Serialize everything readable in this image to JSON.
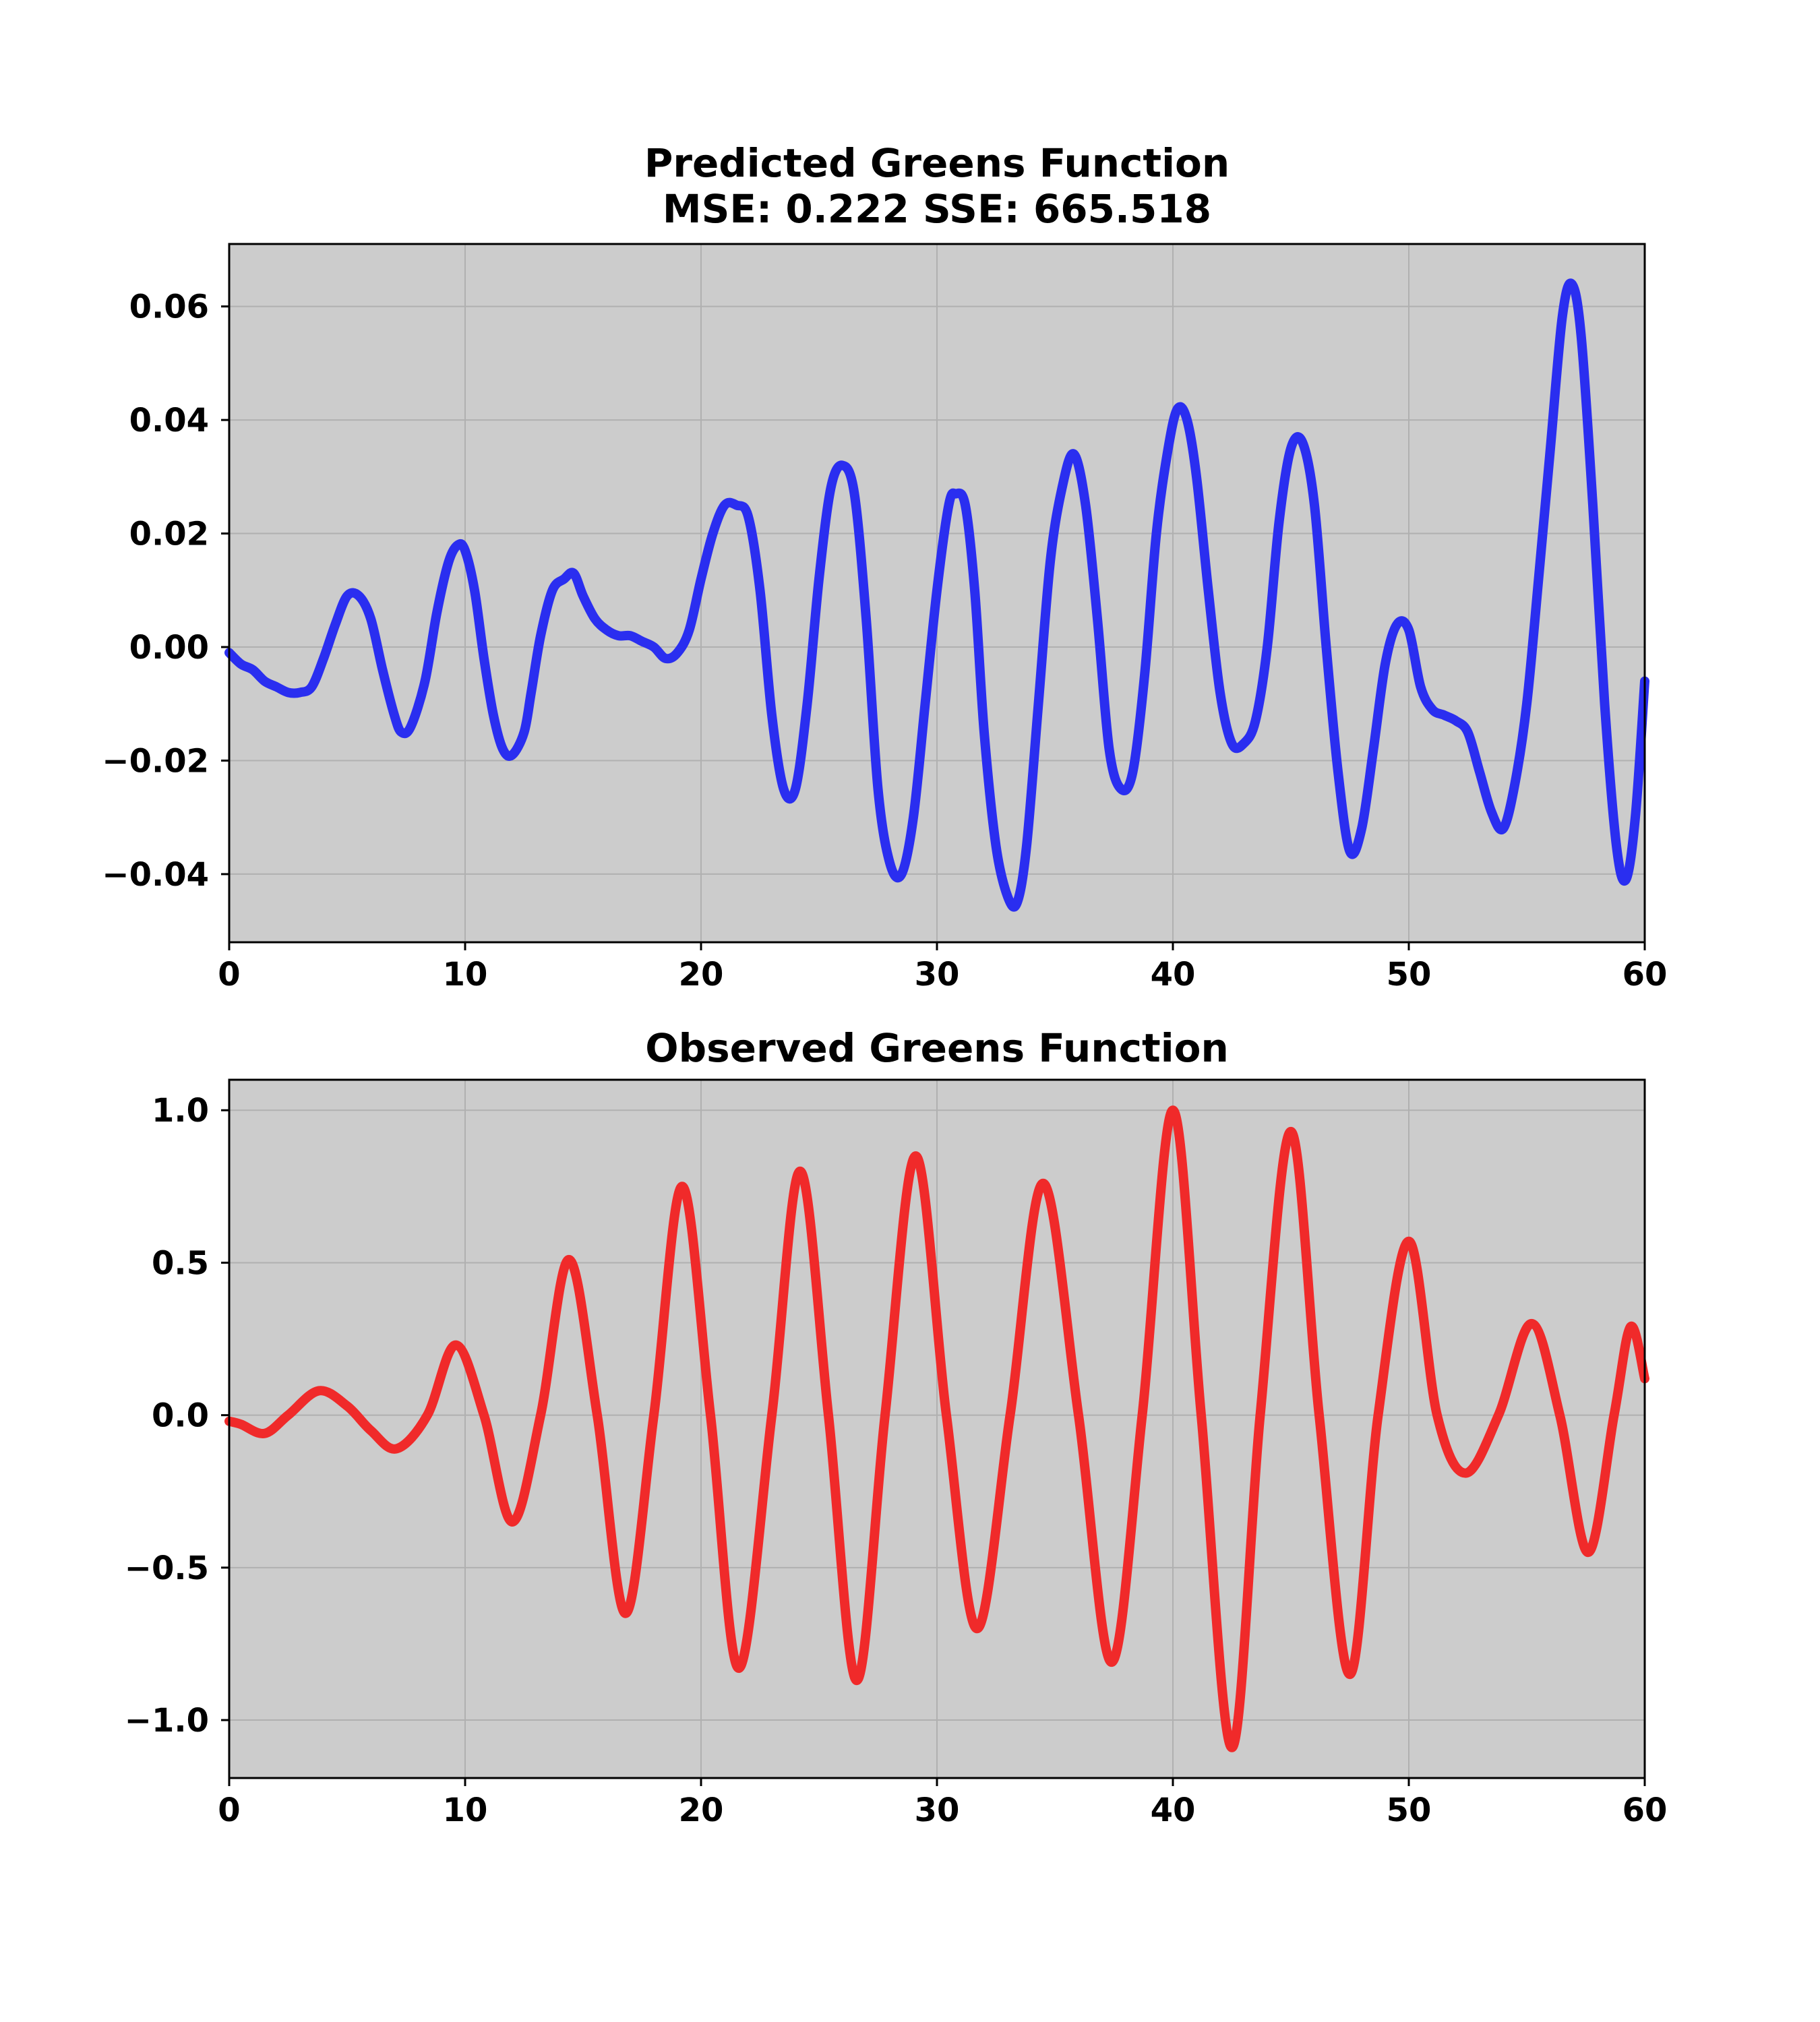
{
  "chart_data": [
    {
      "type": "line",
      "title": "Predicted Greens Function",
      "subtitle": "MSE: 0.222 SSE: 665.518",
      "xlabel": "",
      "ylabel": "",
      "xlim": [
        0,
        60
      ],
      "ylim": [
        -0.052,
        0.071
      ],
      "xticks": [
        0,
        10,
        20,
        30,
        40,
        50,
        60
      ],
      "xtick_labels": [
        "0",
        "10",
        "20",
        "30",
        "40",
        "50",
        "60"
      ],
      "yticks": [
        -0.04,
        -0.02,
        0.0,
        0.02,
        0.04,
        0.06
      ],
      "ytick_labels": [
        "−0.04",
        "−0.02",
        "0.00",
        "0.02",
        "0.04",
        "0.06"
      ],
      "grid": true,
      "background": "#cccccc",
      "series": [
        {
          "color": "#2a2ef0",
          "x": [
            0,
            0.5,
            1.0,
            1.5,
            2.0,
            2.5,
            3.0,
            3.5,
            4.0,
            4.5,
            5.0,
            5.5,
            6.0,
            6.5,
            7.0,
            7.3,
            7.7,
            8.3,
            8.8,
            9.3,
            9.7,
            10.0,
            10.4,
            10.8,
            11.2,
            11.6,
            12.0,
            12.5,
            12.8,
            13.2,
            13.7,
            14.2,
            14.6,
            15.0,
            15.5,
            16.0,
            16.5,
            17.0,
            17.5,
            18.0,
            18.5,
            19.0,
            19.5,
            20.0,
            20.5,
            21.0,
            21.5,
            22.0,
            22.5,
            23.0,
            23.5,
            24.0,
            24.5,
            25.0,
            25.5,
            26.0,
            26.5,
            27.0,
            27.5,
            28.0,
            28.5,
            29.0,
            29.5,
            30.0,
            30.5,
            30.8,
            31.2,
            31.6,
            32.0,
            32.5,
            33.0,
            33.4,
            33.8,
            34.3,
            34.8,
            35.3,
            35.8,
            36.3,
            36.8,
            37.3,
            37.8,
            38.3,
            38.8,
            39.3,
            39.8,
            40.2,
            40.6,
            41.0,
            41.5,
            42.0,
            42.5,
            43.0,
            43.5,
            44.0,
            44.5,
            45.0,
            45.5,
            46.0,
            46.5,
            47.0,
            47.5,
            48.0,
            48.5,
            49.0,
            49.5,
            50.0,
            50.5,
            51.0,
            51.5,
            52.0,
            52.5,
            53.0,
            53.5,
            54.0,
            54.5,
            55.0,
            55.5,
            56.0,
            56.5,
            56.9,
            57.3,
            57.8,
            58.3,
            58.8,
            59.2,
            59.6,
            60.0
          ],
          "y": [
            -0.001,
            -0.003,
            -0.004,
            -0.006,
            -0.007,
            -0.008,
            -0.008,
            -0.007,
            -0.002,
            0.004,
            0.009,
            0.009,
            0.005,
            -0.004,
            -0.012,
            -0.015,
            -0.014,
            -0.006,
            0.006,
            0.015,
            0.018,
            0.017,
            0.01,
            -0.002,
            -0.012,
            -0.018,
            -0.019,
            -0.015,
            -0.008,
            0.002,
            0.01,
            0.012,
            0.013,
            0.009,
            0.005,
            0.003,
            0.002,
            0.002,
            0.001,
            0.0,
            -0.002,
            -0.001,
            0.003,
            0.012,
            0.02,
            0.025,
            0.025,
            0.023,
            0.01,
            -0.012,
            -0.025,
            -0.025,
            -0.01,
            0.012,
            0.028,
            0.032,
            0.027,
            0.005,
            -0.025,
            -0.038,
            -0.04,
            -0.03,
            -0.01,
            0.01,
            0.025,
            0.027,
            0.025,
            0.01,
            -0.015,
            -0.035,
            -0.044,
            -0.045,
            -0.035,
            -0.01,
            0.015,
            0.028,
            0.034,
            0.025,
            0.005,
            -0.018,
            -0.025,
            -0.022,
            -0.005,
            0.02,
            0.035,
            0.042,
            0.04,
            0.03,
            0.01,
            -0.008,
            -0.017,
            -0.017,
            -0.013,
            0.0,
            0.022,
            0.035,
            0.036,
            0.025,
            0.0,
            -0.022,
            -0.036,
            -0.032,
            -0.018,
            -0.003,
            0.004,
            0.003,
            -0.007,
            -0.011,
            -0.012,
            -0.013,
            -0.015,
            -0.022,
            -0.029,
            -0.032,
            -0.024,
            -0.01,
            0.012,
            0.035,
            0.058,
            0.064,
            0.055,
            0.025,
            -0.01,
            -0.035,
            -0.041,
            -0.03,
            -0.006
          ]
        }
      ]
    },
    {
      "type": "line",
      "title": "Observed Greens Function",
      "xlabel": "",
      "ylabel": "",
      "xlim": [
        0,
        60
      ],
      "ylim": [
        -1.19,
        1.1
      ],
      "xticks": [
        0,
        10,
        20,
        30,
        40,
        50,
        60
      ],
      "xtick_labels": [
        "0",
        "10",
        "20",
        "30",
        "40",
        "50",
        "60"
      ],
      "yticks": [
        -1.0,
        -0.5,
        0.0,
        0.5,
        1.0
      ],
      "ytick_labels": [
        "−1.0",
        "−0.5",
        "0.0",
        "0.5",
        "1.0"
      ],
      "grid": true,
      "background": "#cccccc",
      "series": [
        {
          "color": "#f02a2a",
          "x": [
            0,
            0.5,
            1.5,
            2.5,
            3.8,
            5.0,
            6.0,
            7.1,
            8.4,
            9.6,
            10.8,
            12.0,
            13.2,
            14.4,
            15.6,
            16.8,
            18.0,
            19.2,
            20.4,
            21.6,
            23.0,
            24.2,
            25.4,
            26.6,
            27.8,
            29.1,
            30.4,
            31.7,
            33.1,
            34.5,
            36.0,
            37.4,
            38.7,
            40.0,
            41.2,
            42.5,
            43.7,
            45.0,
            46.2,
            47.5,
            48.7,
            50.0,
            51.2,
            52.4,
            53.8,
            55.2,
            56.4,
            57.6,
            58.7,
            59.4,
            60.0
          ],
          "y": [
            -0.02,
            -0.03,
            -0.06,
            0.0,
            0.08,
            0.03,
            -0.05,
            -0.11,
            0.0,
            0.23,
            0.0,
            -0.35,
            0.0,
            0.51,
            0.0,
            -0.65,
            0.0,
            0.75,
            0.0,
            -0.83,
            0.0,
            0.8,
            0.0,
            -0.87,
            0.0,
            0.85,
            0.0,
            -0.7,
            0.0,
            0.76,
            0.0,
            -0.81,
            0.0,
            1.0,
            0.0,
            -1.09,
            0.0,
            0.93,
            0.0,
            -0.85,
            0.0,
            0.57,
            0.0,
            -0.19,
            0.0,
            0.3,
            0.0,
            -0.45,
            0.0,
            0.29,
            0.12
          ]
        }
      ]
    }
  ]
}
